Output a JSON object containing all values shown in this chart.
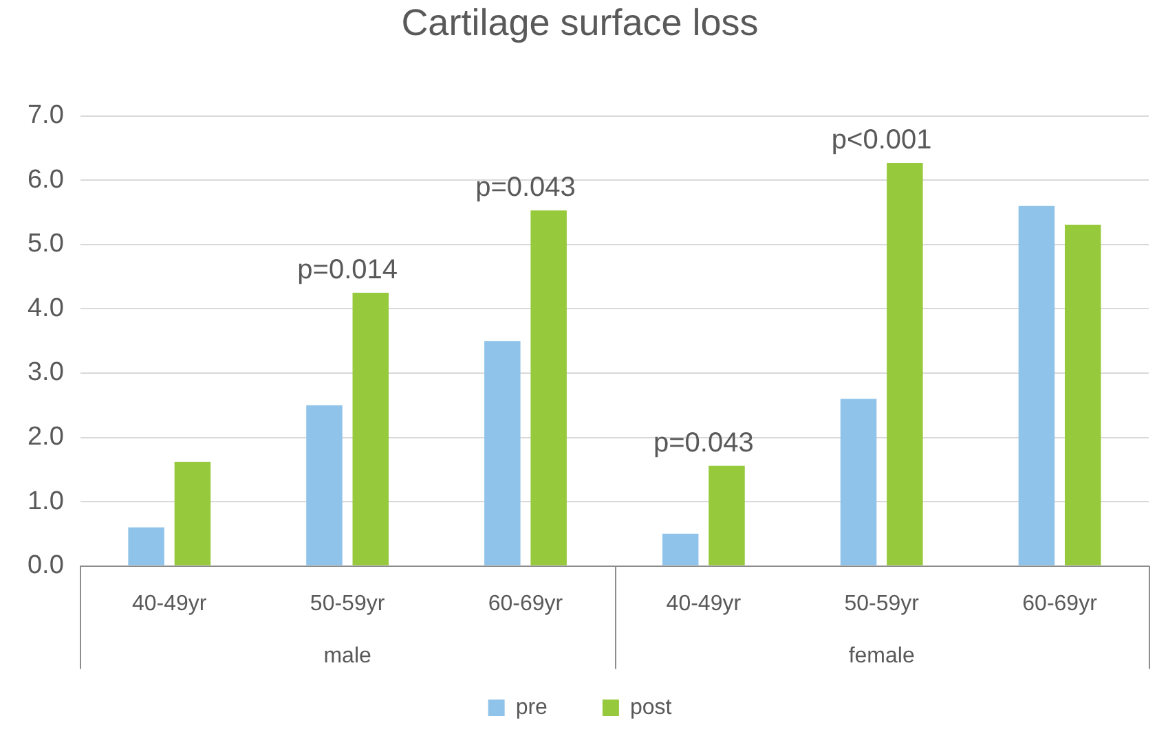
{
  "chart_data": {
    "type": "bar",
    "title": "Cartilage surface loss",
    "categories": [
      "40-49yr",
      "50-59yr",
      "60-69yr",
      "40-49yr",
      "50-59yr",
      "60-69yr"
    ],
    "series": [
      {
        "name": "pre",
        "color": "#8fc3ea",
        "values": [
          0.6,
          2.5,
          3.5,
          0.5,
          2.6,
          5.6
        ]
      },
      {
        "name": "post",
        "color": "#97c93d",
        "values": [
          1.62,
          4.25,
          5.53,
          1.56,
          6.27,
          5.31
        ]
      }
    ],
    "ylim": [
      0,
      7
    ],
    "yticks": [
      {
        "value": 0,
        "label": "0.0"
      },
      {
        "value": 1,
        "label": "1.0"
      },
      {
        "value": 2,
        "label": "2.0"
      },
      {
        "value": 3,
        "label": "3.0"
      },
      {
        "value": 4,
        "label": "4.0"
      },
      {
        "value": 5,
        "label": "5.0"
      },
      {
        "value": 6,
        "label": "6.0"
      },
      {
        "value": 7,
        "label": "7.0"
      }
    ],
    "grid": "y",
    "legend": "bottom",
    "annotations": [
      {
        "text": "p=0.014",
        "x": "50-59yr",
        "y": 4.25
      },
      {
        "text": "p=0.043",
        "x": "60-69yr",
        "y": 5.53
      },
      {
        "text": "p=0.043",
        "y": 1.56
      },
      {
        "text": "p<0.001",
        "y": 6.27
      },
      "male",
      "female"
    ]
  }
}
